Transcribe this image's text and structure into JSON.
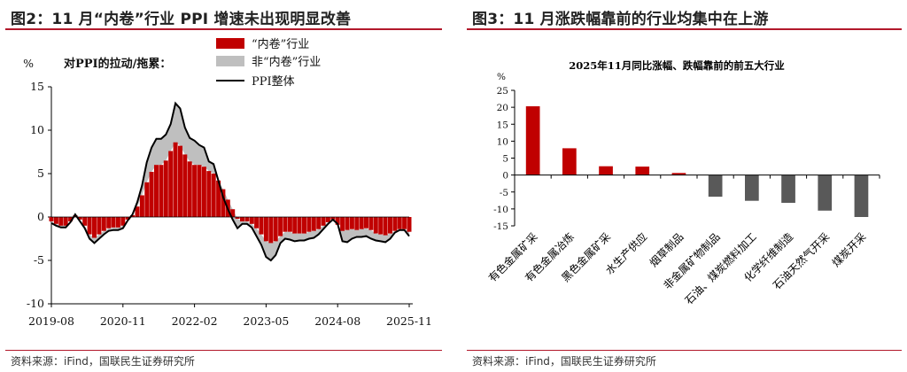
{
  "left": {
    "title": "图2：11 月“内卷”行业 PPI 增速未出现明显改善",
    "source": "资料来源：iFind，国联民生证券研究所",
    "colors": {
      "inward": "#c00000",
      "non_inward": "#bfbfbf",
      "ppi": "#000000",
      "rule": "#b2182b"
    },
    "chart_data": {
      "type": "area",
      "title": "",
      "ylabel": "%",
      "yunit": "%",
      "subtitle_label": "对PPI的拉动/拖累：",
      "ylim": [
        -10,
        15
      ],
      "yticks": [
        -10,
        -5,
        0,
        5,
        10,
        15
      ],
      "xtick_labels": [
        "2019-08",
        "2020-11",
        "2022-02",
        "2023-05",
        "2024-08",
        "2025-11"
      ],
      "legend": [
        "“内卷”行业",
        "非“内卷”行业",
        "PPI整体"
      ],
      "legend_position": "top-right",
      "x": [
        "2019-08",
        "2019-09",
        "2019-10",
        "2019-11",
        "2019-12",
        "2020-01",
        "2020-02",
        "2020-03",
        "2020-04",
        "2020-05",
        "2020-06",
        "2020-07",
        "2020-08",
        "2020-09",
        "2020-10",
        "2020-11",
        "2020-12",
        "2021-01",
        "2021-02",
        "2021-03",
        "2021-04",
        "2021-05",
        "2021-06",
        "2021-07",
        "2021-08",
        "2021-09",
        "2021-10",
        "2021-11",
        "2021-12",
        "2022-01",
        "2022-02",
        "2022-03",
        "2022-04",
        "2022-05",
        "2022-06",
        "2022-07",
        "2022-08",
        "2022-09",
        "2022-10",
        "2022-11",
        "2022-12",
        "2023-01",
        "2023-02",
        "2023-03",
        "2023-04",
        "2023-05",
        "2023-06",
        "2023-07",
        "2023-08",
        "2023-09",
        "2023-10",
        "2023-11",
        "2023-12",
        "2024-01",
        "2024-02",
        "2024-03",
        "2024-04",
        "2024-05",
        "2024-06",
        "2024-07",
        "2024-08",
        "2024-09",
        "2024-10",
        "2024-11",
        "2024-12",
        "2025-01",
        "2025-02",
        "2025-03",
        "2025-04",
        "2025-05",
        "2025-06",
        "2025-07",
        "2025-08",
        "2025-09",
        "2025-10",
        "2025-11"
      ],
      "series": [
        {
          "name": "“内卷”行业",
          "kind": "bar",
          "values": [
            -0.5,
            -0.8,
            -1.0,
            -1.0,
            -0.5,
            0.2,
            -0.3,
            -1.0,
            -2.0,
            -2.4,
            -2.0,
            -1.6,
            -1.3,
            -1.2,
            -1.2,
            -1.0,
            -0.3,
            0.2,
            1.2,
            2.5,
            4.0,
            5.2,
            6.0,
            6.0,
            6.5,
            7.6,
            8.6,
            8.2,
            7.2,
            6.4,
            6.0,
            6.0,
            5.8,
            5.3,
            5.0,
            4.2,
            3.2,
            2.0,
            0.9,
            -0.2,
            -0.5,
            -0.5,
            -0.8,
            -1.3,
            -2.0,
            -2.8,
            -3.0,
            -2.8,
            -2.2,
            -1.7,
            -1.7,
            -1.9,
            -1.9,
            -1.9,
            -1.7,
            -1.6,
            -1.4,
            -1.0,
            -0.6,
            -0.3,
            -0.9,
            -1.6,
            -1.5,
            -1.4,
            -1.5,
            -1.4,
            -1.3,
            -1.5,
            -1.9,
            -2.0,
            -2.1,
            -1.9,
            -1.6,
            -1.4,
            -1.4,
            -1.7
          ]
        },
        {
          "name": "非“内卷”行业",
          "kind": "area",
          "values": [
            -0.2,
            -0.2,
            -0.2,
            -0.2,
            -0.1,
            0.1,
            -0.2,
            -0.3,
            -0.5,
            -0.6,
            -0.5,
            -0.4,
            -0.3,
            -0.3,
            -0.3,
            -0.3,
            -0.1,
            0.1,
            0.5,
            1.1,
            2.3,
            2.8,
            3.0,
            3.0,
            3.0,
            3.1,
            4.5,
            4.3,
            3.1,
            2.7,
            2.8,
            2.3,
            2.2,
            1.1,
            1.1,
            0.0,
            -0.9,
            -1.1,
            -1.2,
            -1.1,
            -0.3,
            -0.3,
            -0.4,
            -0.9,
            -1.2,
            -1.8,
            -2.0,
            -1.6,
            -0.8,
            -0.8,
            -0.9,
            -0.9,
            -0.8,
            -0.8,
            -0.8,
            -0.8,
            -0.6,
            -0.4,
            -0.2,
            0.0,
            0.1,
            -1.2,
            -1.4,
            -1.1,
            -0.8,
            -0.9,
            -0.9,
            -1.0,
            -0.8,
            -0.8,
            -0.8,
            -0.6,
            -0.2,
            -0.1,
            -0.1,
            -0.5
          ]
        },
        {
          "name": "PPI整体",
          "kind": "line",
          "values": [
            -0.7,
            -1.0,
            -1.2,
            -1.2,
            -0.6,
            0.3,
            -0.5,
            -1.3,
            -2.5,
            -3.0,
            -2.5,
            -2.0,
            -1.6,
            -1.5,
            -1.5,
            -1.3,
            -0.4,
            0.3,
            1.7,
            3.6,
            6.3,
            8.0,
            9.0,
            9.0,
            9.5,
            10.7,
            13.1,
            12.5,
            10.3,
            9.1,
            8.8,
            8.3,
            8.0,
            6.4,
            6.1,
            4.2,
            2.3,
            0.9,
            -0.3,
            -1.3,
            -0.8,
            -0.8,
            -1.2,
            -2.2,
            -3.2,
            -4.6,
            -5.0,
            -4.4,
            -3.0,
            -2.5,
            -2.6,
            -2.8,
            -2.7,
            -2.7,
            -2.5,
            -2.4,
            -2.0,
            -1.4,
            -0.8,
            -0.3,
            -0.8,
            -2.8,
            -2.9,
            -2.5,
            -2.3,
            -2.3,
            -2.2,
            -2.5,
            -2.7,
            -2.8,
            -2.9,
            -2.5,
            -1.8,
            -1.5,
            -1.5,
            -2.2
          ]
        }
      ]
    }
  },
  "right": {
    "title": "图3：11 月涨跌幅靠前的行业均集中在上游",
    "source": "资料来源：iFind，国联民生证券研究所",
    "colors": {
      "up": "#c00000",
      "down": "#595959",
      "rule": "#b2182b"
    },
    "chart_data": {
      "type": "bar",
      "title": "2025年11月同比涨幅、跌幅靠前的前五大行业",
      "ylabel": "%",
      "ylim": [
        -15,
        25
      ],
      "yticks": [
        -15,
        -10,
        -5,
        0,
        5,
        10,
        15,
        20,
        25
      ],
      "categories": [
        "有色金属矿采",
        "有色金属冶炼",
        "黑色金属矿采",
        "水生产供应",
        "烟草制品",
        "非金属矿物制品",
        "石油、煤炭燃料加工",
        "化学纤维制造",
        "石油天然气开采",
        "煤炭开采"
      ],
      "values": [
        20.3,
        7.9,
        2.6,
        2.5,
        0.6,
        -6.4,
        -7.6,
        -8.2,
        -10.5,
        -12.4
      ],
      "grid": false
    }
  }
}
